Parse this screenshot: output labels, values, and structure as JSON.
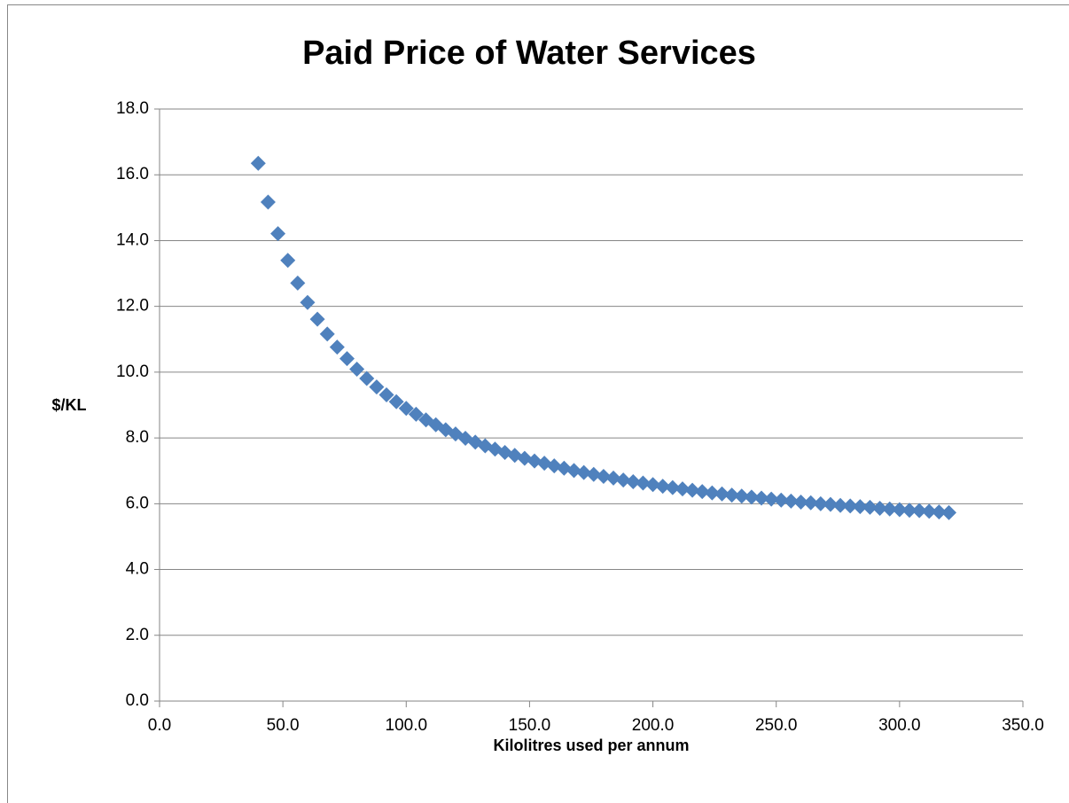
{
  "chart_data": {
    "type": "scatter",
    "title": "Paid Price of Water Services",
    "x_label": "Kilolitres used per annum",
    "y_label": "$/KL",
    "color": "#4f81bd",
    "grid": true,
    "xlim": [
      0,
      350
    ],
    "ylim": [
      0,
      18
    ],
    "xticks": [
      {
        "value": 0,
        "label": "0.0"
      },
      {
        "value": 50,
        "label": "50.0"
      },
      {
        "value": 100,
        "label": "100.0"
      },
      {
        "value": 150,
        "label": "150.0"
      },
      {
        "value": 200,
        "label": "200.0"
      },
      {
        "value": 250,
        "label": "250.0"
      },
      {
        "value": 300,
        "label": "300.0"
      },
      {
        "value": 350,
        "label": "350.0"
      }
    ],
    "yticks": [
      {
        "value": 0,
        "label": "0.0"
      },
      {
        "value": 2,
        "label": "2.0"
      },
      {
        "value": 4,
        "label": "4.0"
      },
      {
        "value": 6,
        "label": "6.0"
      },
      {
        "value": 8,
        "label": "8.0"
      },
      {
        "value": 10,
        "label": "10.0"
      },
      {
        "value": 12,
        "label": "12.0"
      },
      {
        "value": 14,
        "label": "14.0"
      },
      {
        "value": 16,
        "label": "16.0"
      },
      {
        "value": 18,
        "label": "18.0"
      }
    ],
    "x": [
      40,
      44,
      48,
      52,
      56,
      60,
      64,
      68,
      72,
      76,
      80,
      84,
      88,
      92,
      96,
      100,
      104,
      108,
      112,
      116,
      120,
      124,
      128,
      132,
      136,
      140,
      144,
      148,
      152,
      156,
      160,
      164,
      168,
      172,
      176,
      180,
      184,
      188,
      192,
      196,
      200,
      204,
      208,
      212,
      216,
      220,
      224,
      228,
      232,
      236,
      240,
      244,
      248,
      252,
      256,
      260,
      264,
      268,
      272,
      276,
      280,
      284,
      288,
      292,
      296,
      300,
      304,
      308,
      312,
      316,
      320
    ],
    "values": [
      16.35,
      15.17,
      14.21,
      13.4,
      12.71,
      12.12,
      11.61,
      11.16,
      10.76,
      10.41,
      10.09,
      9.81,
      9.55,
      9.31,
      9.1,
      8.9,
      8.72,
      8.55,
      8.4,
      8.25,
      8.12,
      7.99,
      7.87,
      7.76,
      7.66,
      7.56,
      7.47,
      7.38,
      7.3,
      7.23,
      7.15,
      7.08,
      7.01,
      6.95,
      6.89,
      6.83,
      6.78,
      6.72,
      6.67,
      6.63,
      6.58,
      6.53,
      6.49,
      6.45,
      6.41,
      6.37,
      6.33,
      6.3,
      6.26,
      6.23,
      6.2,
      6.17,
      6.14,
      6.11,
      6.08,
      6.05,
      6.03,
      6.0,
      5.98,
      5.95,
      5.93,
      5.91,
      5.89,
      5.86,
      5.84,
      5.82,
      5.8,
      5.79,
      5.77,
      5.75,
      5.73
    ]
  }
}
